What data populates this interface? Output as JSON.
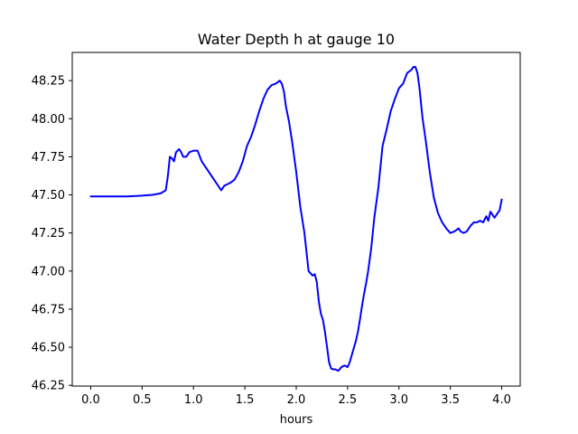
{
  "chart_data": {
    "type": "line",
    "title": "Water Depth h at gauge 10",
    "xlabel": "hours",
    "ylabel": "",
    "xlim": [
      -0.18,
      4.18
    ],
    "ylim": [
      46.245,
      48.435
    ],
    "grid": false,
    "xticks": [
      0.0,
      0.5,
      1.0,
      1.5,
      2.0,
      2.5,
      3.0,
      3.5,
      4.0
    ],
    "xtick_labels": [
      "0.0",
      "0.5",
      "1.0",
      "1.5",
      "2.0",
      "2.5",
      "3.0",
      "3.5",
      "4.0"
    ],
    "yticks": [
      46.25,
      46.5,
      46.75,
      47.0,
      47.25,
      47.5,
      47.75,
      48.0,
      48.25
    ],
    "ytick_labels": [
      "46.25",
      "46.50",
      "46.75",
      "47.00",
      "47.25",
      "47.50",
      "47.75",
      "48.00",
      "48.25"
    ],
    "series": [
      {
        "color": "#0000ff",
        "x": [
          0.0,
          0.2,
          0.35,
          0.5,
          0.6,
          0.68,
          0.73,
          0.75,
          0.77,
          0.79,
          0.81,
          0.83,
          0.86,
          0.88,
          0.9,
          0.93,
          0.96,
          1.0,
          1.04,
          1.08,
          1.12,
          1.16,
          1.2,
          1.24,
          1.27,
          1.3,
          1.33,
          1.36,
          1.4,
          1.44,
          1.48,
          1.52,
          1.56,
          1.6,
          1.64,
          1.68,
          1.72,
          1.76,
          1.8,
          1.84,
          1.86,
          1.88,
          1.9,
          1.93,
          1.96,
          2.0,
          2.04,
          2.08,
          2.12,
          2.16,
          2.18,
          2.2,
          2.22,
          2.24,
          2.26,
          2.28,
          2.3,
          2.32,
          2.34,
          2.36,
          2.38,
          2.41,
          2.44,
          2.47,
          2.5,
          2.52,
          2.55,
          2.58,
          2.6,
          2.62,
          2.64,
          2.66,
          2.68,
          2.7,
          2.73,
          2.76,
          2.8,
          2.84,
          2.88,
          2.92,
          2.96,
          3.0,
          3.04,
          3.08,
          3.1,
          3.12,
          3.14,
          3.16,
          3.18,
          3.2,
          3.23,
          3.26,
          3.3,
          3.34,
          3.38,
          3.42,
          3.46,
          3.5,
          3.54,
          3.58,
          3.6,
          3.63,
          3.66,
          3.7,
          3.73,
          3.76,
          3.79,
          3.82,
          3.85,
          3.87,
          3.89,
          3.91,
          3.93,
          3.96,
          3.98,
          4.0
        ],
        "y": [
          47.49,
          47.49,
          47.49,
          47.495,
          47.5,
          47.51,
          47.53,
          47.62,
          47.75,
          47.74,
          47.72,
          47.78,
          47.8,
          47.78,
          47.75,
          47.75,
          47.78,
          47.79,
          47.79,
          47.72,
          47.68,
          47.64,
          47.6,
          47.56,
          47.53,
          47.56,
          47.57,
          47.58,
          47.6,
          47.65,
          47.72,
          47.82,
          47.88,
          47.96,
          48.05,
          48.13,
          48.19,
          48.22,
          48.23,
          48.25,
          48.23,
          48.18,
          48.08,
          47.98,
          47.85,
          47.65,
          47.42,
          47.25,
          47.0,
          46.97,
          46.98,
          46.93,
          46.8,
          46.72,
          46.68,
          46.6,
          46.5,
          46.4,
          46.36,
          46.355,
          46.355,
          46.345,
          46.37,
          46.38,
          46.37,
          46.4,
          46.47,
          46.54,
          46.6,
          46.68,
          46.77,
          46.85,
          46.92,
          47.0,
          47.15,
          47.35,
          47.55,
          47.82,
          47.93,
          48.05,
          48.13,
          48.2,
          48.23,
          48.3,
          48.31,
          48.32,
          48.34,
          48.34,
          48.3,
          48.2,
          48.0,
          47.86,
          47.65,
          47.48,
          47.38,
          47.32,
          47.28,
          47.25,
          47.26,
          47.28,
          47.26,
          47.25,
          47.26,
          47.3,
          47.32,
          47.32,
          47.33,
          47.32,
          47.36,
          47.33,
          47.39,
          47.37,
          47.35,
          47.38,
          47.4,
          47.47
        ]
      }
    ]
  }
}
